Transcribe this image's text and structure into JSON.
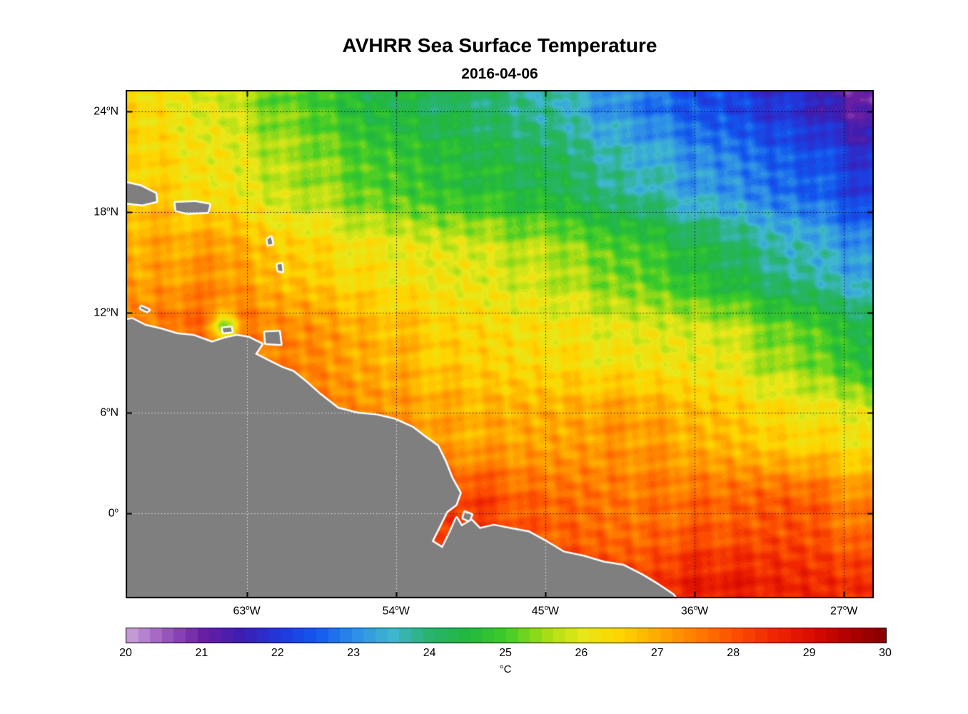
{
  "header": {
    "title": "AVHRR Sea Surface Temperature",
    "subtitle": "2016-04-06"
  },
  "chart_data": {
    "type": "heatmap",
    "title": "AVHRR Sea Surface Temperature",
    "subtitle": "2016-04-06",
    "degree_glyph": "o",
    "projection": {
      "lon_range": [
        -70.3,
        -25.2
      ],
      "lat_range": [
        -5.1,
        25.3
      ]
    },
    "x_ticks": [
      {
        "lon": -63,
        "value": "63",
        "suffix": "W"
      },
      {
        "lon": -54,
        "value": "54",
        "suffix": "W"
      },
      {
        "lon": -45,
        "value": "45",
        "suffix": "W"
      },
      {
        "lon": -36,
        "value": "36",
        "suffix": "W"
      },
      {
        "lon": -27,
        "value": "27",
        "suffix": "W"
      }
    ],
    "y_ticks": [
      {
        "lat": 24,
        "value": "24",
        "suffix": "N"
      },
      {
        "lat": 18,
        "value": "18",
        "suffix": "N"
      },
      {
        "lat": 12,
        "value": "12",
        "suffix": "N"
      },
      {
        "lat": 6,
        "value": "6",
        "suffix": "N"
      },
      {
        "lat": 0,
        "value": "0",
        "suffix": ""
      }
    ],
    "grid": {
      "style": "dotted",
      "ocean_color": "#000000",
      "land_color": "#ffffff"
    },
    "sst_field": {
      "lons": [
        -70,
        -65,
        -60,
        -55,
        -50,
        -45,
        -40,
        -35,
        -30,
        -25
      ],
      "lats": [
        25,
        20,
        15,
        10,
        5,
        0,
        -5
      ],
      "values": [
        [
          26.4,
          25.9,
          25.1,
          24.4,
          24.1,
          23.7,
          22.9,
          22.3,
          21.8,
          20.9
        ],
        [
          26.6,
          26.2,
          25.6,
          25.0,
          24.6,
          24.3,
          23.7,
          23.1,
          22.6,
          22.0
        ],
        [
          27.0,
          27.2,
          26.6,
          26.2,
          26.0,
          25.7,
          25.1,
          24.4,
          23.7,
          23.1
        ],
        [
          27.6,
          27.9,
          27.4,
          26.9,
          26.5,
          26.3,
          26.1,
          26.0,
          25.3,
          24.4
        ],
        [
          27.8,
          28.1,
          27.7,
          27.3,
          27.0,
          27.0,
          27.2,
          26.8,
          26.4,
          26.1
        ],
        [
          28.2,
          28.2,
          28.0,
          27.9,
          28.3,
          27.8,
          27.6,
          27.8,
          28.0,
          27.4
        ],
        [
          28.6,
          28.6,
          28.5,
          28.4,
          28.6,
          28.3,
          28.2,
          28.8,
          28.6,
          28.4
        ]
      ]
    },
    "anomalies": [
      {
        "lon": -64.3,
        "lat": 11.2,
        "amp": -2.2,
        "sigma": 0.6
      }
    ],
    "colormap": [
      [
        20.0,
        "#CBA6D8"
      ],
      [
        20.5,
        "#9B59C0"
      ],
      [
        21.0,
        "#6A1FA2"
      ],
      [
        21.5,
        "#3D1DB0"
      ],
      [
        22.0,
        "#2236D9"
      ],
      [
        22.5,
        "#1158EE"
      ],
      [
        23.0,
        "#2D8CE8"
      ],
      [
        23.5,
        "#3FB6D0"
      ],
      [
        24.0,
        "#27B36B"
      ],
      [
        24.5,
        "#22B83C"
      ],
      [
        25.0,
        "#3FCC28"
      ],
      [
        25.5,
        "#A2DC16"
      ],
      [
        26.0,
        "#E6E81A"
      ],
      [
        26.5,
        "#FFD400"
      ],
      [
        27.0,
        "#FFAA00"
      ],
      [
        27.5,
        "#FF7D00"
      ],
      [
        28.0,
        "#FC5000"
      ],
      [
        28.5,
        "#F02800"
      ],
      [
        29.0,
        "#DB0D00"
      ],
      [
        29.5,
        "#B20000"
      ],
      [
        30.0,
        "#850000"
      ]
    ],
    "colorbar": {
      "min": 20,
      "max": 30,
      "levels": 64,
      "ticks": [
        "20",
        "21",
        "22",
        "23",
        "24",
        "25",
        "26",
        "27",
        "28",
        "29",
        "30"
      ],
      "label": "°C"
    },
    "land": {
      "fill": "#7F7F7F",
      "coast_color": "#FFFFFF",
      "mainland": [
        [
          -71.0,
          11.4
        ],
        [
          -69.9,
          11.6
        ],
        [
          -69.1,
          11.2
        ],
        [
          -68.2,
          11.0
        ],
        [
          -67.2,
          10.7
        ],
        [
          -66.2,
          10.6
        ],
        [
          -65.1,
          10.2
        ],
        [
          -64.3,
          10.45
        ],
        [
          -63.6,
          10.6
        ],
        [
          -62.9,
          10.5
        ],
        [
          -62.1,
          10.1
        ],
        [
          -62.5,
          9.5
        ],
        [
          -61.7,
          9.1
        ],
        [
          -60.9,
          8.7
        ],
        [
          -60.2,
          8.45
        ],
        [
          -59.4,
          7.8
        ],
        [
          -58.6,
          7.1
        ],
        [
          -57.5,
          6.25
        ],
        [
          -56.3,
          5.95
        ],
        [
          -55.2,
          5.85
        ],
        [
          -54.1,
          5.6
        ],
        [
          -53.0,
          5.1
        ],
        [
          -52.2,
          4.5
        ],
        [
          -51.5,
          4.0
        ],
        [
          -51.05,
          3.1
        ],
        [
          -50.65,
          2.1
        ],
        [
          -50.15,
          1.2
        ],
        [
          -50.4,
          0.5
        ],
        [
          -50.95,
          0.1
        ],
        [
          -51.35,
          -0.7
        ],
        [
          -51.85,
          -1.7
        ],
        [
          -51.2,
          -2.1
        ],
        [
          -50.7,
          -1.1
        ],
        [
          -50.35,
          -0.3
        ],
        [
          -50.05,
          -0.8
        ],
        [
          -49.45,
          -0.45
        ],
        [
          -48.95,
          -0.95
        ],
        [
          -48.1,
          -0.75
        ],
        [
          -47.1,
          -0.95
        ],
        [
          -46.0,
          -1.15
        ],
        [
          -44.9,
          -1.75
        ],
        [
          -43.9,
          -2.35
        ],
        [
          -42.7,
          -2.6
        ],
        [
          -41.5,
          -2.95
        ],
        [
          -40.3,
          -3.15
        ],
        [
          -39.2,
          -3.7
        ],
        [
          -38.2,
          -4.3
        ],
        [
          -37.3,
          -4.9
        ],
        [
          -36.8,
          -5.6
        ],
        [
          -71.0,
          -5.6
        ]
      ],
      "islands": {
        "hispaniola": [
          [
            -71.0,
            19.9
          ],
          [
            -69.4,
            19.55
          ],
          [
            -68.5,
            19.1
          ],
          [
            -68.45,
            18.65
          ],
          [
            -69.3,
            18.45
          ],
          [
            -71.0,
            18.65
          ]
        ],
        "puerto_rico": [
          [
            -67.3,
            18.55
          ],
          [
            -66.1,
            18.6
          ],
          [
            -65.25,
            18.45
          ],
          [
            -65.35,
            18.0
          ],
          [
            -66.6,
            17.95
          ],
          [
            -67.25,
            18.1
          ]
        ],
        "guadeloupe": [
          [
            -61.75,
            16.35
          ],
          [
            -61.55,
            16.5
          ],
          [
            -61.45,
            16.1
          ],
          [
            -61.7,
            16.05
          ]
        ],
        "martinique": [
          [
            -61.15,
            14.85
          ],
          [
            -60.9,
            14.9
          ],
          [
            -60.85,
            14.45
          ],
          [
            -61.1,
            14.5
          ]
        ],
        "curacao": [
          [
            -69.35,
            12.35
          ],
          [
            -68.9,
            12.15
          ],
          [
            -69.0,
            12.05
          ],
          [
            -69.4,
            12.25
          ]
        ],
        "margarita": [
          [
            -64.45,
            11.05
          ],
          [
            -63.95,
            11.1
          ],
          [
            -63.9,
            10.85
          ],
          [
            -64.4,
            10.8
          ]
        ],
        "trinidad": [
          [
            -61.9,
            10.8
          ],
          [
            -61.05,
            10.85
          ],
          [
            -60.95,
            10.1
          ],
          [
            -61.85,
            10.15
          ]
        ],
        "marajo": [
          [
            -49.85,
            0.05
          ],
          [
            -49.45,
            -0.1
          ],
          [
            -49.6,
            -0.45
          ],
          [
            -49.95,
            -0.3
          ]
        ]
      }
    }
  }
}
